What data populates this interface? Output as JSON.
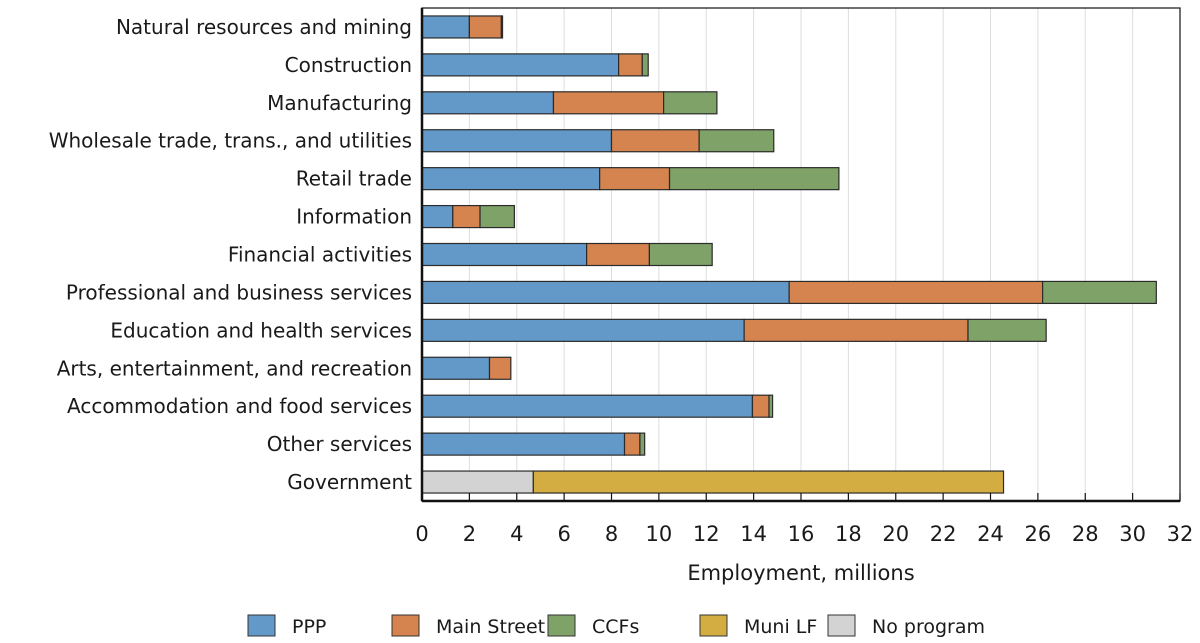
{
  "chart_data": {
    "type": "bar",
    "orientation": "horizontal",
    "stacked": true,
    "title": "",
    "xlabel": "Employment, millions",
    "ylabel": "",
    "xlim": [
      0,
      32
    ],
    "xticks": [
      0,
      2,
      4,
      6,
      8,
      10,
      12,
      14,
      16,
      18,
      20,
      22,
      24,
      26,
      28,
      30,
      32
    ],
    "grid": "vertical",
    "legend_position": "bottom",
    "categories": [
      "Natural resources and mining",
      "Construction",
      "Manufacturing",
      "Wholesale trade, trans., and utilities",
      "Retail trade",
      "Information",
      "Financial activities",
      "Professional and business services",
      "Education and health services",
      "Arts, entertainment, and recreation",
      "Accommodation and food services",
      "Other services",
      "Government"
    ],
    "series": [
      {
        "name": "PPP",
        "color": "#6399c8",
        "values": [
          2.0,
          8.3,
          5.55,
          8.0,
          7.5,
          1.3,
          6.95,
          15.5,
          13.6,
          2.85,
          13.95,
          8.55,
          0
        ]
      },
      {
        "name": "Main Street",
        "color": "#d5834f",
        "values": [
          1.35,
          1.0,
          4.65,
          3.7,
          2.95,
          1.15,
          2.65,
          10.7,
          9.45,
          0.9,
          0.7,
          0.65,
          0
        ]
      },
      {
        "name": "CCFs",
        "color": "#7fa268",
        "values": [
          0.05,
          0.25,
          2.25,
          3.15,
          7.15,
          1.45,
          2.65,
          4.8,
          3.3,
          0.0,
          0.15,
          0.2,
          0
        ]
      },
      {
        "name": "Muni LF",
        "color": "#d4ad42",
        "values": [
          0,
          0,
          0,
          0,
          0,
          0,
          0,
          0,
          0,
          0,
          0,
          0,
          19.85
        ]
      },
      {
        "name": "No program",
        "color": "#d3d3d3",
        "values": [
          0,
          0,
          0,
          0,
          0,
          0,
          0,
          0,
          0,
          0,
          0,
          0,
          4.7
        ]
      }
    ],
    "stack_order_by_category": {
      "default": [
        "PPP",
        "Main Street",
        "CCFs"
      ],
      "Government": [
        "No program",
        "Muni LF"
      ]
    }
  }
}
